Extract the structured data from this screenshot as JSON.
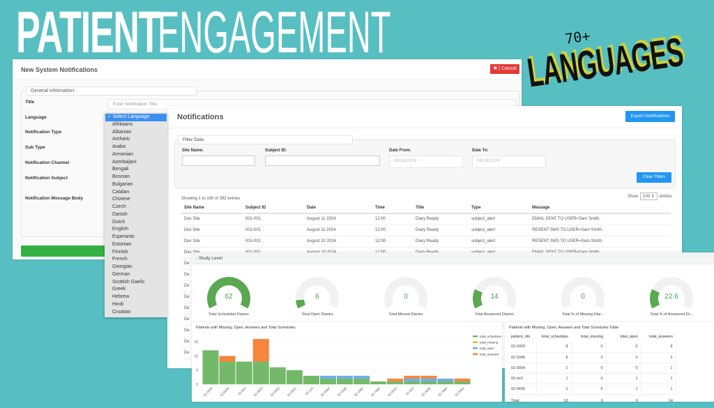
{
  "banner": {
    "title_bold": "PATIENT",
    "title_thin": "ENGAGEMENT",
    "badge_count": "70+",
    "badge_word": "LANGUAGES",
    "accent": "#57bfc2"
  },
  "new_notification": {
    "title": "New System Notifications",
    "cancel_label": "✖ | Cancel",
    "legend": "General Information:",
    "fields": [
      "Title",
      "Language",
      "Notification Type",
      "Sub Type",
      "Notification Channel",
      "Notification Subject",
      "Notification Message Body"
    ],
    "title_placeholder": "Enter Notification Title",
    "language_dropdown": {
      "selected": "✓ Select Language",
      "options": [
        "Afrikaans",
        "Albanian",
        "Amharic",
        "Arabic",
        "Armenian",
        "Azerbaijani",
        "Bengali",
        "Bosnian",
        "Bulgarian",
        "Catalan",
        "Chinese",
        "Czech",
        "Danish",
        "Dutch",
        "English",
        "Esperanto",
        "Estonian",
        "Finnish",
        "French",
        "Georgian",
        "German",
        "Scottish Gaelic",
        "Greek",
        "Hebrew",
        "Hindi",
        "Croatian"
      ]
    }
  },
  "notifications": {
    "title": "Notifications",
    "export_label": "Export Notifications",
    "filter_legend": "Filter Data",
    "filters": {
      "site_label": "Site Name:",
      "subject_label": "Subject ID:",
      "from_label": "Date From:",
      "to_label": "Date To:",
      "from_value": "08/19/2024",
      "to_value": "08/19/2024"
    },
    "clear_label": "Clear Filters",
    "showing": "Showing 1 to 100 of 292 entries",
    "show_label": "Show",
    "show_value": "100 ⇕",
    "entries_label": "entries",
    "columns": [
      "Site Name",
      "Subject ID",
      "Date",
      "Time",
      "Title",
      "Type",
      "Message"
    ],
    "rows": [
      [
        "Dex Site",
        "001-001",
        "August 11 2024",
        "12:00",
        "Diary Ready",
        "subject_alert",
        "EMAIL SENT TO USER=Sam Smith."
      ],
      [
        "Dex Site",
        "001-001",
        "August 11 2024",
        "12:00",
        "Diary Ready",
        "subject_alert",
        "RESENT SMS TO USER=Sam Smith."
      ],
      [
        "Dex Site",
        "001-001",
        "August 10 2024",
        "12:00",
        "Diary Ready",
        "subject_alert",
        "RESENT SMS TO USER=Sam Smith."
      ],
      [
        "Dex Site",
        "001-001",
        "August 10 2024",
        "12:00",
        "Diary Ready",
        "subject_alert",
        "EMAIL SENT TO USER=Sam Smith."
      ],
      [
        "De"
      ],
      [
        "De"
      ],
      [
        "De"
      ],
      [
        "De"
      ],
      [
        "De"
      ],
      [
        "De"
      ],
      [
        "De"
      ],
      [
        "De"
      ],
      [
        "De"
      ]
    ]
  },
  "study_level": {
    "title": "- Study Level",
    "gauges": [
      {
        "value": 62,
        "max": 62,
        "label": "Total Scheduled Diaries"
      },
      {
        "value": 6,
        "max": 62,
        "label": "Total Open Diaries"
      },
      {
        "value": 0,
        "max": 62,
        "label": "Total Missed Diaries"
      },
      {
        "value": 14,
        "max": 62,
        "label": "Total Answered Diaries"
      },
      {
        "value": 0,
        "max": 100,
        "label": "Total % of Missing Diar..."
      },
      {
        "value": 22.6,
        "max": 100,
        "label": "Total % of Answered Di..."
      }
    ],
    "gauge_color": "#5aa84f"
  },
  "chart_data": {
    "type": "bar",
    "stacked": true,
    "title": "Patients with Missing, Open, Answers and Total Schedules",
    "categories": [
      "02-4328",
      "02-9346",
      "02-004",
      "02-0003",
      "02-0002",
      "02-0001",
      "02-110",
      "02-4562",
      "02-4536",
      "02-4582",
      "02-7890",
      "02-0004",
      "02-dv3",
      "02-0606",
      "02-7894",
      "02-5554"
    ],
    "series": [
      {
        "name": "total_schedules",
        "color": "#74b86a",
        "values": [
          12,
          8,
          8,
          8,
          6,
          5,
          3,
          2,
          2,
          2,
          1,
          1,
          1,
          1,
          1,
          1
        ]
      },
      {
        "name": "total_missing",
        "color": "#c9c23a",
        "values": [
          0,
          0,
          0,
          0,
          0,
          0,
          0,
          0,
          0,
          0,
          0,
          0,
          0,
          0,
          0,
          0
        ]
      },
      {
        "name": "total_open",
        "color": "#6aaee8",
        "values": [
          0,
          0,
          0,
          0,
          0,
          0,
          0,
          1,
          1,
          1,
          0,
          0,
          1,
          1,
          1,
          0
        ]
      },
      {
        "name": "total_answers",
        "color": "#f5863b",
        "values": [
          0,
          2,
          0,
          8,
          0,
          0,
          0,
          0,
          0,
          0,
          0,
          1,
          1,
          1,
          0,
          1
        ]
      }
    ],
    "yticks": [
      0,
      5,
      10,
      15
    ],
    "ylim": [
      0,
      17
    ],
    "legend": "right"
  },
  "summary_table": {
    "title": "Patients with Missing, Open, Answers and Total Schedules Table",
    "columns": [
      "patient_nbr",
      "total_schedules",
      "total_missing",
      "total_open",
      "total_answers"
    ],
    "rows": [
      [
        "02-0003",
        "8",
        "0",
        "0",
        "8"
      ],
      [
        "02-9346",
        "8",
        "0",
        "0",
        "2"
      ],
      [
        "02-0004",
        "1",
        "0",
        "0",
        "1"
      ],
      [
        "02-dv3",
        "1",
        "0",
        "1",
        "1"
      ],
      [
        "02-0606",
        "1",
        "0",
        "1",
        "1"
      ]
    ],
    "total": [
      "Total",
      "62",
      "0",
      "6",
      "14"
    ]
  }
}
